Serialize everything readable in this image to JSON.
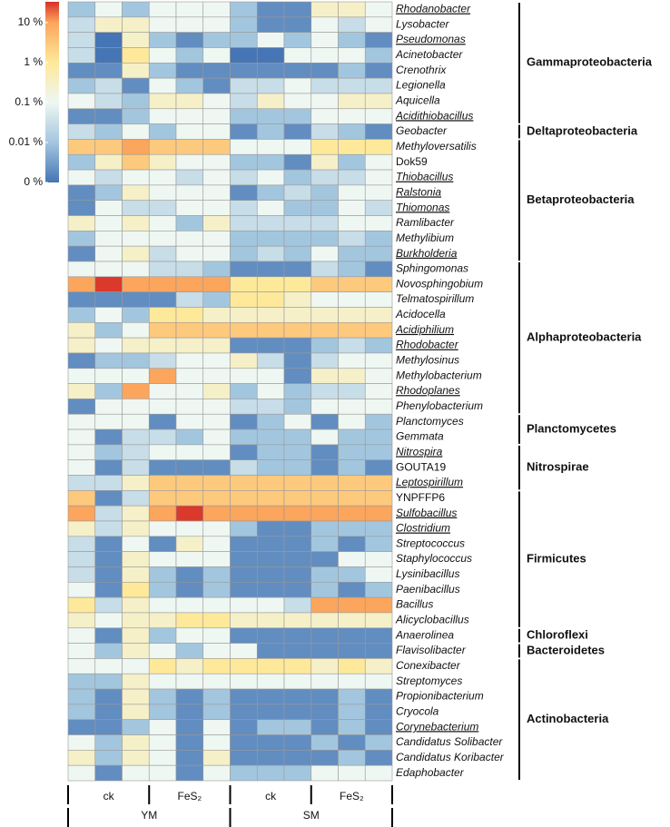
{
  "chart_data": {
    "type": "heatmap",
    "rows": [
      "Rhodanobacter",
      "Lysobacter",
      "Pseudomonas",
      "Acinetobacter",
      "Crenothrix",
      "Legionella",
      "Aquicella",
      "Acidithiobacillus",
      "Geobacter",
      "Methyloversatilis",
      "Dok59",
      "Thiobacillus",
      "Ralstonia",
      "Thiomonas",
      "Ramlibacter",
      "Methylibium",
      "Burkholderia",
      "Sphingomonas",
      "Novosphingobium",
      "Telmatospirillum",
      "Acidocella",
      "Acidiphilium",
      "Rhodobacter",
      "Methylosinus",
      "Methylobacterium",
      "Rhodoplanes",
      "Phenylobacterium",
      "Planctomyces",
      "Gemmata",
      "Nitrospira",
      "GOUTA19",
      "Leptospirillum",
      "YNPFFP6",
      "Sulfobacillus",
      "Clostridium",
      "Streptococcus",
      "Staphylococcus",
      "Lysinibacillus",
      "Paenibacillus",
      "Bacillus",
      "Alicyclobacillus",
      "Anaerolinea",
      "Flavisolibacter",
      "Conexibacter",
      "Streptomyces",
      "Propionibacterium",
      "Cryocola",
      "Corynebacterium",
      "Candidatus Solibacter",
      "Candidatus Koribacter",
      "Edaphobacter"
    ],
    "underlined_rows": [
      0,
      2,
      7,
      11,
      12,
      13,
      16,
      21,
      22,
      25,
      29,
      31,
      33,
      34,
      47
    ],
    "upright_rows": [
      10,
      30,
      32
    ],
    "groups": [
      {
        "name": "Gammaproteobacteria",
        "first": 0,
        "last": 7
      },
      {
        "name": "Deltaproteobacteria",
        "first": 8,
        "last": 8
      },
      {
        "name": "Betaproteobacteria",
        "first": 9,
        "last": 16
      },
      {
        "name": "Alphaproteobacteria",
        "first": 17,
        "last": 26
      },
      {
        "name": "Planctomycetes",
        "first": 27,
        "last": 28
      },
      {
        "name": "Nitrospirae",
        "first": 29,
        "last": 31
      },
      {
        "name": "Firmicutes",
        "first": 32,
        "last": 40
      },
      {
        "name": "Chloroflexi",
        "first": 41,
        "last": 41
      },
      {
        "name": "Bacteroidetes",
        "first": 42,
        "last": 42
      },
      {
        "name": "Actinobacteria",
        "first": 43,
        "last": 50
      }
    ],
    "treatments": [
      "ck",
      "FeS₂",
      "ck",
      "FeS₂"
    ],
    "sites": [
      "YM",
      "SM"
    ],
    "values": [
      [
        0.01,
        0.1,
        0.01,
        0.1,
        0.1,
        0.1,
        0.01,
        0.003,
        0.003,
        0.3,
        0.3,
        0.1
      ],
      [
        0.03,
        0.3,
        0.3,
        0.1,
        0.1,
        0.1,
        0.01,
        0.003,
        0.003,
        0.1,
        0.03,
        0.1
      ],
      [
        0.03,
        0,
        0.3,
        0.01,
        0.003,
        0.01,
        0.01,
        0.1,
        0.01,
        0.1,
        0.01,
        0.003
      ],
      [
        0.03,
        0,
        1,
        0.1,
        0.01,
        0.1,
        0,
        0,
        0.1,
        0.1,
        0.1,
        0.01
      ],
      [
        0.003,
        0.003,
        0.3,
        0.01,
        0.003,
        0.003,
        0.003,
        0.003,
        0.003,
        0.003,
        0.01,
        0.003
      ],
      [
        0.01,
        0.03,
        0.003,
        0.1,
        0.01,
        0.003,
        0.03,
        0.03,
        0.1,
        0.03,
        0.03,
        0.03
      ],
      [
        0.1,
        0.03,
        0.01,
        0.3,
        0.3,
        0.1,
        0.03,
        0.3,
        0.1,
        0.1,
        0.3,
        0.3
      ],
      [
        0.003,
        0.003,
        0.01,
        0.1,
        0.1,
        0.1,
        0.01,
        0.01,
        0.01,
        0.1,
        0.1,
        0.1
      ],
      [
        0.03,
        0.01,
        0.1,
        0.01,
        0.1,
        0.1,
        0.003,
        0.01,
        0.003,
        0.03,
        0.01,
        0.003
      ],
      [
        3,
        3,
        10,
        3,
        3,
        3,
        0.1,
        0.1,
        0.1,
        1,
        1,
        1
      ],
      [
        0.01,
        0.3,
        3,
        0.3,
        0.1,
        0.1,
        0.01,
        0.01,
        0.003,
        0.3,
        0.01,
        0.1
      ],
      [
        0.1,
        0.03,
        0.1,
        0.1,
        0.03,
        0.1,
        0.03,
        0.1,
        0.01,
        0.03,
        0.03,
        0.1
      ],
      [
        0.003,
        0.01,
        0.3,
        0.1,
        0.1,
        0.1,
        0.003,
        0.01,
        0.03,
        0.01,
        0.1,
        0.1
      ],
      [
        0.003,
        0.1,
        0.03,
        0.03,
        0.1,
        0.1,
        0.03,
        0.1,
        0.01,
        0.01,
        0.1,
        0.03
      ],
      [
        0.3,
        0.1,
        0.3,
        0.1,
        0.01,
        0.3,
        0.03,
        0.03,
        0.03,
        0.03,
        0.1,
        0.1
      ],
      [
        0.01,
        0.1,
        0.1,
        0.1,
        0.1,
        0.1,
        0.01,
        0.01,
        0.01,
        0.01,
        0.03,
        0.01
      ],
      [
        0.003,
        0.1,
        0.3,
        0.03,
        0.1,
        0.1,
        0.01,
        0.03,
        0.01,
        0.1,
        0.01,
        0.01
      ],
      [
        0.1,
        0.1,
        0.1,
        0.03,
        0.03,
        0.01,
        0.003,
        0.003,
        0.003,
        0.03,
        0.01,
        0.003
      ],
      [
        10,
        30,
        10,
        10,
        10,
        10,
        1,
        1,
        1,
        3,
        3,
        3
      ],
      [
        0.003,
        0.003,
        0.003,
        0.003,
        0.03,
        0.01,
        1,
        1,
        0.3,
        0.1,
        0.1,
        0.1
      ],
      [
        0.01,
        0.1,
        0.01,
        1,
        1,
        0.3,
        0.3,
        0.3,
        0.3,
        0.3,
        0.3,
        0.3
      ],
      [
        0.3,
        0.01,
        0.1,
        3,
        3,
        3,
        3,
        3,
        3,
        3,
        3,
        3
      ],
      [
        0.3,
        0.1,
        0.3,
        0.3,
        0.3,
        0.3,
        0.003,
        0.003,
        0.003,
        0.01,
        0.03,
        0.01
      ],
      [
        0.003,
        0.01,
        0.01,
        0.03,
        0.1,
        0.1,
        0.3,
        0.03,
        0.003,
        0.03,
        0.1,
        0.1
      ],
      [
        0.1,
        0.1,
        0.1,
        10,
        0.1,
        0.1,
        0.1,
        0.1,
        0.003,
        0.3,
        0.3,
        0.1
      ],
      [
        0.3,
        0.01,
        10,
        0.1,
        0.1,
        0.3,
        0.01,
        0.1,
        0.01,
        0.03,
        0.03,
        0.1
      ],
      [
        0.003,
        0.1,
        0.1,
        0.1,
        0.1,
        0.1,
        0.03,
        0.03,
        0.01,
        0.1,
        0.1,
        0.1
      ],
      [
        0.1,
        0.1,
        0.1,
        0.003,
        0.1,
        0.1,
        0.003,
        0.01,
        0.1,
        0.003,
        0.1,
        0.01
      ],
      [
        0.1,
        0.003,
        0.03,
        0.03,
        0.01,
        0.1,
        0.01,
        0.01,
        0.01,
        0.1,
        0.01,
        0.01
      ],
      [
        0.1,
        0.01,
        0.03,
        0.1,
        0.1,
        0.1,
        0.003,
        0.01,
        0.01,
        0.003,
        0.01,
        0.01
      ],
      [
        0.1,
        0.003,
        0.03,
        0.003,
        0.003,
        0.003,
        0.03,
        0.01,
        0.01,
        0.003,
        0.01,
        0.003
      ],
      [
        0.03,
        0.03,
        0.3,
        3,
        3,
        3,
        3,
        3,
        3,
        3,
        3,
        3
      ],
      [
        3,
        0.003,
        0.03,
        3,
        3,
        3,
        3,
        3,
        3,
        3,
        3,
        3
      ],
      [
        10,
        0.03,
        0.3,
        10,
        30,
        10,
        10,
        10,
        10,
        10,
        10,
        10
      ],
      [
        0.3,
        0.03,
        0.3,
        0.1,
        0.1,
        0.1,
        0.01,
        0.003,
        0.003,
        0.01,
        0.01,
        0.01
      ],
      [
        0.03,
        0.003,
        0.1,
        0.003,
        0.3,
        0.1,
        0.003,
        0.003,
        0.003,
        0.01,
        0.003,
        0.01
      ],
      [
        0.03,
        0.003,
        0.3,
        0.1,
        0.1,
        0.1,
        0.003,
        0.003,
        0.003,
        0.003,
        0.1,
        0.1
      ],
      [
        0.03,
        0.003,
        0.3,
        0.01,
        0.003,
        0.01,
        0.003,
        0.003,
        0.003,
        0.01,
        0.01,
        0.1
      ],
      [
        0.1,
        0.003,
        1,
        0.01,
        0.003,
        0.01,
        0.003,
        0.003,
        0.003,
        0.01,
        0.003,
        0.01
      ],
      [
        1,
        0.03,
        0.3,
        0.1,
        0.1,
        0.1,
        0.1,
        0.1,
        0.03,
        10,
        10,
        10
      ],
      [
        0.3,
        0.1,
        0.3,
        0.3,
        1,
        1,
        0.3,
        0.3,
        0.3,
        0.3,
        0.3,
        0.3
      ],
      [
        0.1,
        0.003,
        0.3,
        0.01,
        0.1,
        0.1,
        0.003,
        0.003,
        0.003,
        0.003,
        0.003,
        0.003
      ],
      [
        0.1,
        0.01,
        0.3,
        0.1,
        0.01,
        0.1,
        0.1,
        0.003,
        0.003,
        0.003,
        0.003,
        0.003
      ],
      [
        0.1,
        0.1,
        0.1,
        1,
        0.3,
        1,
        1,
        1,
        1,
        0.3,
        1,
        0.3
      ],
      [
        0.01,
        0.01,
        0.3,
        0.1,
        0.1,
        0.1,
        0.1,
        0.1,
        0.1,
        0.1,
        0.1,
        0.1
      ],
      [
        0.01,
        0.003,
        0.3,
        0.01,
        0.003,
        0.01,
        0.003,
        0.003,
        0.003,
        0.003,
        0.01,
        0.003
      ],
      [
        0.01,
        0.003,
        0.3,
        0.01,
        0.003,
        0.01,
        0.003,
        0.003,
        0.003,
        0.003,
        0.01,
        0.003
      ],
      [
        0.003,
        0.003,
        0.01,
        0.1,
        0.003,
        0.1,
        0.003,
        0.01,
        0.01,
        0.003,
        0.01,
        0.003
      ],
      [
        0.1,
        0.01,
        0.3,
        0.1,
        0.003,
        0.1,
        0.003,
        0.003,
        0.003,
        0.01,
        0.003,
        0.01
      ],
      [
        0.3,
        0.01,
        0.3,
        0.1,
        0.003,
        0.3,
        0.003,
        0.003,
        0.003,
        0.003,
        0.01,
        0.003
      ],
      [
        0.1,
        0.003,
        0.1,
        0.1,
        0.003,
        0.1,
        0.01,
        0.01,
        0.01,
        0.1,
        0.1,
        0.1
      ]
    ],
    "clim": [
      0,
      33
    ],
    "cticks": [
      {
        "value": 0,
        "label": "0 %"
      },
      {
        "value": 0.01,
        "label": "0.01 %"
      },
      {
        "value": 0.1,
        "label": "0.1 %"
      },
      {
        "value": 1,
        "label": "1 %"
      },
      {
        "value": 10,
        "label": "10 %"
      }
    ],
    "colorscale": [
      "#4575b4",
      "#a3c6df",
      "#eef7f2",
      "#fee99a",
      "#fca55d",
      "#d73027"
    ]
  }
}
